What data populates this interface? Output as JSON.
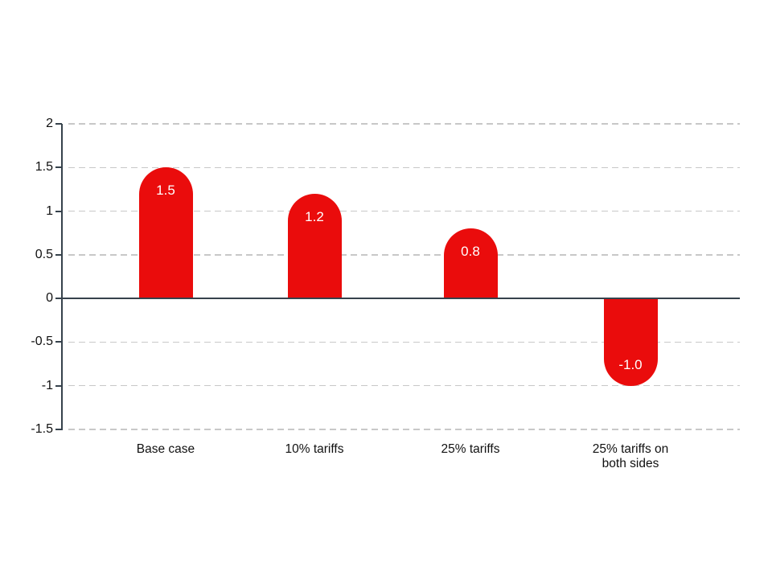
{
  "chart_data": {
    "type": "bar",
    "title": "",
    "xlabel": "",
    "ylabel": "",
    "categories": [
      "Base case",
      "10% tariffs",
      "25% tariffs",
      "25% tariffs on both sides"
    ],
    "values": [
      1.5,
      1.2,
      0.8,
      -1.0
    ],
    "bar_labels": [
      "1.5",
      "1.2",
      "0.8",
      "-1.0"
    ],
    "yticks": [
      2,
      1.5,
      1,
      0.5,
      0,
      -0.5,
      -1,
      -1.5
    ],
    "ytick_labels": [
      "2",
      "1.5",
      "1",
      "0.5",
      "0",
      "-0.5",
      "-1",
      "-1.5"
    ],
    "ylim": [
      -1.5,
      2
    ],
    "grid": "horizontal-dashed",
    "legend": null,
    "bar_shape": "rounded-cap",
    "colors": {
      "bar": "#ea0c0c",
      "bar_label": "#ffffff",
      "axis": "#36424c",
      "gridline": "#c8c8c8",
      "tick_label": "#111111",
      "background": "#ffffff"
    }
  }
}
